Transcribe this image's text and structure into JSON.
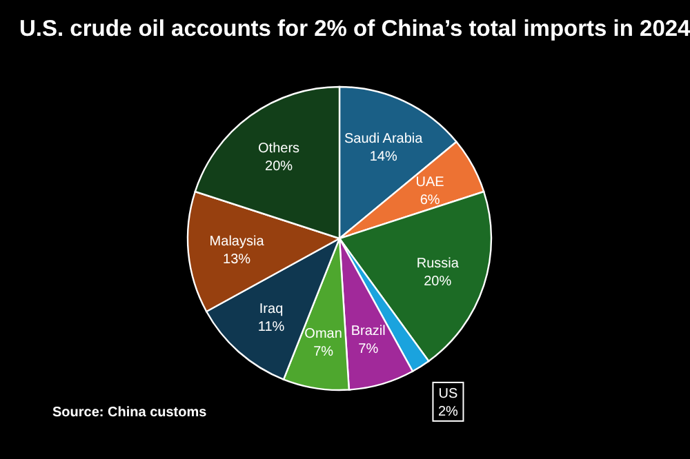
{
  "chart_data": {
    "type": "pie",
    "title": "U.S. crude oil accounts for 2% of China’s total imports in 2024",
    "categories": [
      "Saudi Arabia",
      "UAE",
      "Russia",
      "US",
      "Brazil",
      "Oman",
      "Iraq",
      "Malaysia",
      "Others"
    ],
    "values": [
      14,
      6,
      20,
      2,
      7,
      7,
      11,
      13,
      20
    ],
    "colors": [
      "#1a5f86",
      "#ed7233",
      "#1c6b25",
      "#1aa3de",
      "#a1299a",
      "#4ea72e",
      "#0f3750",
      "#97400f",
      "#123f19"
    ],
    "value_labels": [
      "14%",
      "6%",
      "20%",
      "2%",
      "7%",
      "7%",
      "11%",
      "13%",
      "20%"
    ],
    "annotations": [
      "Source: China customs"
    ]
  }
}
